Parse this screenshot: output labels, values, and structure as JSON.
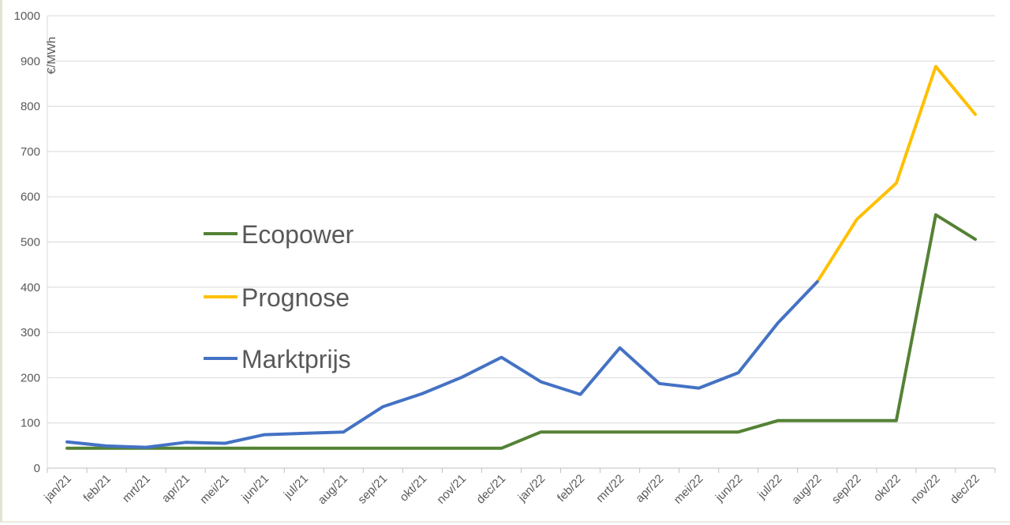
{
  "chart_data": {
    "type": "line",
    "title": "",
    "xlabel": "",
    "ylabel": "€/MWh",
    "ylim": [
      0,
      1000
    ],
    "yticks": [
      0,
      100,
      200,
      300,
      400,
      500,
      600,
      700,
      800,
      900,
      1000
    ],
    "categories": [
      "jan/21",
      "feb/21",
      "mrt/21",
      "apr/21",
      "mei/21",
      "jun/21",
      "jul/21",
      "aug/21",
      "sep/21",
      "okt/21",
      "nov/21",
      "dec/21",
      "jan/22",
      "feb/22",
      "mrt/22",
      "apr/22",
      "mei/22",
      "jun/22",
      "jul/22",
      "aug/22",
      "sep/22",
      "okt/22",
      "nov/22",
      "dec/22"
    ],
    "series": [
      {
        "name": "Ecopower",
        "color": "#548235",
        "values": [
          44,
          44,
          44,
          44,
          44,
          44,
          44,
          44,
          44,
          44,
          44,
          44,
          80,
          80,
          80,
          80,
          80,
          80,
          105,
          105,
          105,
          105,
          560,
          506
        ]
      },
      {
        "name": "Prognose",
        "color": "#ffc000",
        "values": [
          null,
          null,
          null,
          null,
          null,
          null,
          null,
          null,
          null,
          null,
          null,
          null,
          null,
          null,
          null,
          null,
          null,
          null,
          null,
          412,
          550,
          630,
          888,
          782
        ]
      },
      {
        "name": "Marktprijs",
        "color": "#4472c4",
        "values": [
          58,
          49,
          46,
          57,
          55,
          74,
          77,
          80,
          136,
          165,
          201,
          245,
          191,
          163,
          266,
          187,
          177,
          211,
          321,
          412,
          null,
          null,
          null,
          null
        ]
      }
    ],
    "grid": true,
    "legend_position": "center-left"
  }
}
